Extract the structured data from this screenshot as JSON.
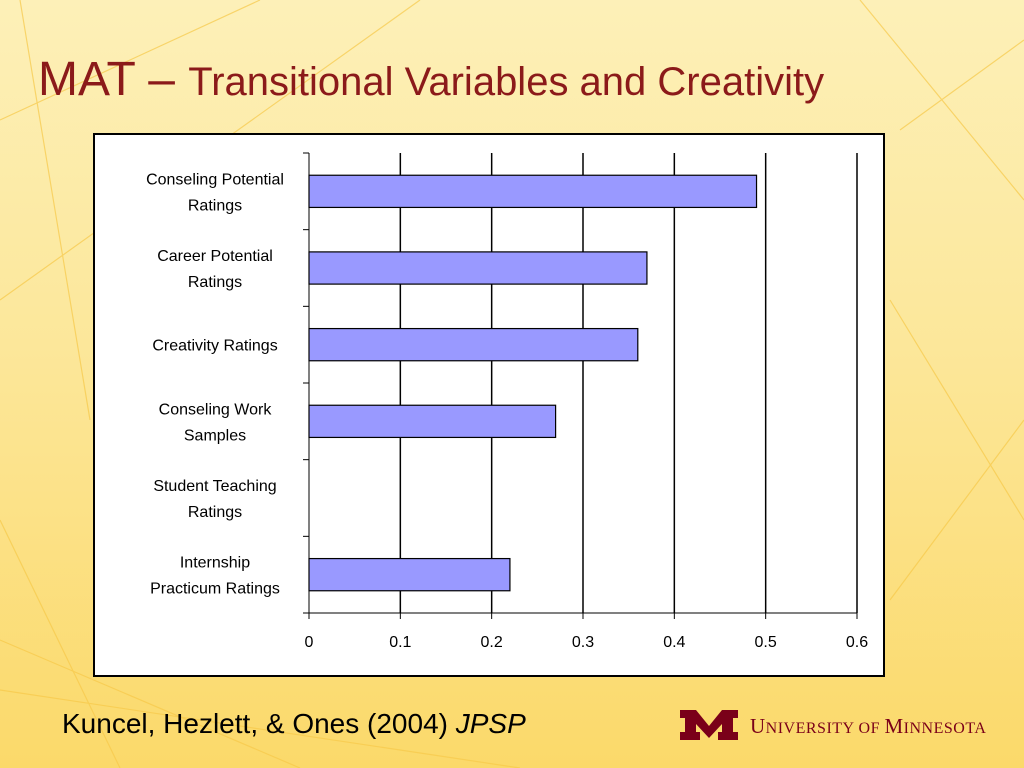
{
  "title": {
    "main": "MAT",
    "dash": " – ",
    "sub": "Transitional Variables and Creativity"
  },
  "chart_data": {
    "type": "bar",
    "orientation": "horizontal",
    "categories": [
      [
        "Conseling Potential",
        "Ratings"
      ],
      [
        "Career Potential",
        "Ratings"
      ],
      [
        "Creativity Ratings"
      ],
      [
        "Conseling Work",
        "Samples"
      ],
      [
        "Student Teaching",
        "Ratings"
      ],
      [
        "Internship",
        "Practicum Ratings"
      ]
    ],
    "values": [
      0.49,
      0.37,
      0.36,
      0.27,
      null,
      0.22
    ],
    "xlim": [
      0,
      0.6
    ],
    "xticks": [
      "0",
      "0.1",
      "0.2",
      "0.3",
      "0.4",
      "0.5",
      "0.6"
    ],
    "grid": true,
    "bar_color": "#9999ff",
    "legend": "none"
  },
  "citation": {
    "authors": "Kuncel, Hezlett, & Ones (2004) ",
    "journal": "JPSP"
  },
  "logo": {
    "u": "U",
    "niversity": "NIVERSITY OF ",
    "m": "M",
    "innesota": "INNESOTA",
    "color": "#7a0019"
  }
}
